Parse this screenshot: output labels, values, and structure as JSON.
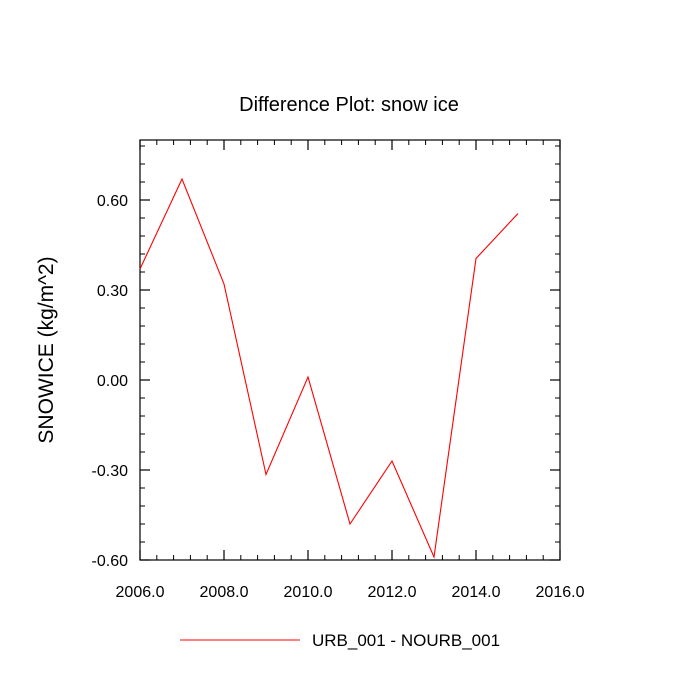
{
  "chart_data": {
    "type": "line",
    "title": "Difference Plot: snow ice",
    "ylabel": "SNOWICE  (kg/m^2)",
    "xlabel": "",
    "xlim": [
      2006,
      2016
    ],
    "ylim": [
      -0.6,
      0.8
    ],
    "x_ticks": [
      2006,
      2008,
      2010,
      2012,
      2014,
      2016
    ],
    "x_tick_labels": [
      "2006.0",
      "2008.0",
      "2010.0",
      "2012.0",
      "2014.0",
      "2016.0"
    ],
    "y_ticks": [
      -0.6,
      -0.3,
      0.0,
      0.3,
      0.6
    ],
    "y_tick_labels": [
      "-0.60",
      "-0.30",
      "0.00",
      "0.30",
      "0.60"
    ],
    "grid": false,
    "legend_position": "bottom-center",
    "series": [
      {
        "name": "URB_001 - NOURB_001",
        "color": "#ff0000",
        "x": [
          2006,
          2007,
          2008,
          2009,
          2010,
          2011,
          2012,
          2013,
          2014,
          2015
        ],
        "y": [
          0.37,
          0.67,
          0.32,
          -0.315,
          0.01,
          -0.48,
          -0.27,
          -0.59,
          0.405,
          0.555
        ]
      }
    ]
  }
}
